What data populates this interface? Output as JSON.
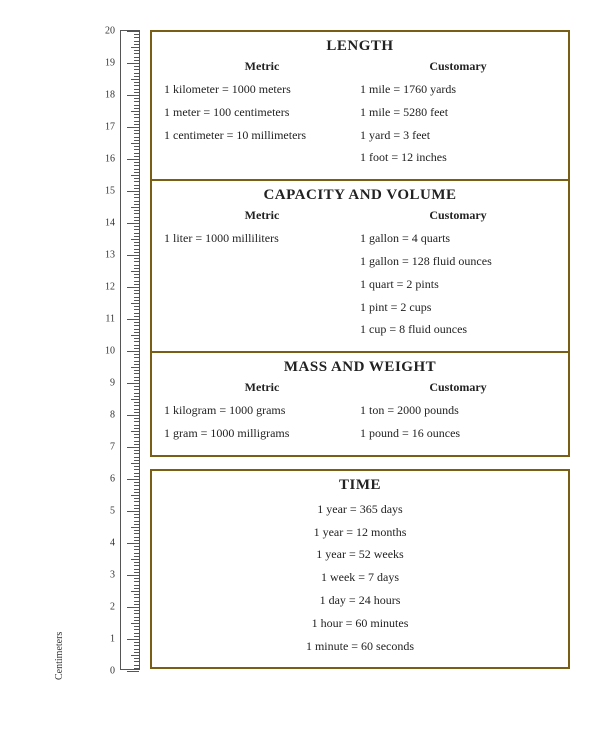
{
  "colors": {
    "accent": "#7a5e13",
    "text": "#222222",
    "background": "#ffffff",
    "ruler_stroke": "#555555"
  },
  "ruler": {
    "unit_label": "Centimeters",
    "min": 0,
    "max": 20,
    "labels": [
      "0",
      "1",
      "2",
      "3",
      "4",
      "5",
      "6",
      "7",
      "8",
      "9",
      "10",
      "11",
      "12",
      "13",
      "14",
      "15",
      "16",
      "17",
      "18",
      "19",
      "20"
    ]
  },
  "sections": {
    "length": {
      "title": "LENGTH",
      "metric_head": "Metric",
      "customary_head": "Customary",
      "metric": [
        "1 kilometer  =  1000 meters",
        "1 meter  =  100 centimeters",
        "1 centimeter  =  10 millimeters"
      ],
      "customary": [
        "1 mile  =  1760 yards",
        "1 mile  =  5280 feet",
        "1 yard  =  3 feet",
        "1 foot  =  12 inches"
      ]
    },
    "capacity": {
      "title": "CAPACITY AND VOLUME",
      "metric_head": "Metric",
      "customary_head": "Customary",
      "metric": [
        "1 liter  =  1000 milliliters"
      ],
      "customary": [
        "1 gallon  =  4 quarts",
        "1 gallon  =  128 fluid ounces",
        "1 quart  =  2 pints",
        "1 pint  =  2 cups",
        "1 cup  =  8 fluid ounces"
      ]
    },
    "mass": {
      "title": "MASS AND WEIGHT",
      "metric_head": "Metric",
      "customary_head": "Customary",
      "metric": [
        "1 kilogram  =  1000 grams",
        "1 gram  = 1000 milligrams"
      ],
      "customary": [
        "1 ton  =  2000 pounds",
        "1 pound  =  16 ounces"
      ]
    },
    "time": {
      "title": "TIME",
      "rows": [
        "1 year   =   365 days",
        "1 year   =   12 months",
        "1 year   =   52 weeks",
        "1 week   =   7 days",
        "1 day   =   24 hours",
        "1 hour   =   60 minutes",
        "1 minute   =   60 seconds"
      ]
    }
  }
}
